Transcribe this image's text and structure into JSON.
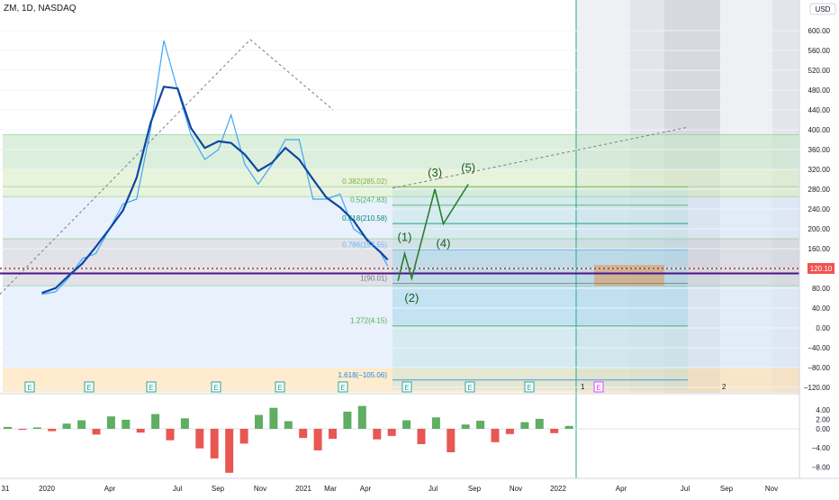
{
  "header": {
    "symbol_line": "ZM, 1D, NASDAQ"
  },
  "price_axis": {
    "currency": "USD",
    "ticks": [
      "600.00",
      "560.00",
      "520.00",
      "480.00",
      "440.00",
      "400.00",
      "360.00",
      "320.00",
      "280.00",
      "240.00",
      "200.00",
      "160.00",
      "120.00",
      "80.00",
      "40.00",
      "0.00",
      "−40.00",
      "−80.00",
      "−120.00"
    ],
    "last_price": "120.10",
    "last_price_color": "#ef5350"
  },
  "osc_axis": {
    "ticks": [
      "4.00",
      "2.00",
      "0.00",
      "−4.00",
      "−8.00"
    ]
  },
  "time_axis": {
    "ticks": [
      "31",
      "2020",
      "Apr",
      "Jul",
      "Sep",
      "Nov",
      "2021",
      "Mar",
      "Apr",
      "Jul",
      "Sep",
      "Nov",
      "2022",
      "Apr",
      "Jul",
      "Sep",
      "Nov"
    ]
  },
  "fib_labels": [
    {
      "text": "0.382(285.02)",
      "price": 285.02,
      "color": "#7cb342"
    },
    {
      "text": "0.5(247.83)",
      "price": 247.83,
      "color": "#4caf50"
    },
    {
      "text": "0.618(210.58)",
      "price": 210.58,
      "color": "#00897b"
    },
    {
      "text": "0.786(157.55)",
      "price": 157.55,
      "color": "#64b5f6"
    },
    {
      "text": "1(90.01)",
      "price": 90.01,
      "color": "#787b86"
    },
    {
      "text": "1.272(4.15)",
      "price": 4.15,
      "color": "#4caf50"
    },
    {
      "text": "1.618(−105.06)",
      "price": -105.06,
      "color": "#1e88e5"
    }
  ],
  "wave_labels": [
    "(1)",
    "(2)",
    "(3)",
    "(4)",
    "(5)"
  ],
  "earnings_marker": "E",
  "bottom_labels": [
    "1",
    "2"
  ],
  "colors": {
    "ma": "#0d47a1",
    "price_line": "#42a5f5",
    "wave": "#1b5e20",
    "hline_purple": "#4a148c",
    "hline_red": "#c62828"
  },
  "chart_data": {
    "type": "line",
    "x_axis": "date (daily)",
    "y_axis": "price (USD)",
    "ylim": [
      -130,
      630
    ],
    "series": [
      {
        "name": "",
        "points": [
          [
            "2019-12-31",
            68
          ],
          [
            "2020-01-31",
            73
          ],
          [
            "2020-02-28",
            100
          ],
          [
            "2020-03-31",
            140
          ],
          [
            "2020-04-30",
            150
          ],
          [
            "2020-05-31",
            200
          ],
          [
            "2020-06-30",
            250
          ],
          [
            "2020-07-31",
            260
          ],
          [
            "2020-08-31",
            400
          ],
          [
            "2020-09-30",
            580
          ],
          [
            "2020-10-31",
            480
          ],
          [
            "2020-11-30",
            390
          ],
          [
            "2020-12-31",
            340
          ],
          [
            "2021-01-31",
            360
          ],
          [
            "2021-02-28",
            430
          ],
          [
            "2021-03-31",
            330
          ],
          [
            "2021-04-30",
            290
          ],
          [
            "2021-05-31",
            330
          ],
          [
            "2021-06-30",
            380
          ],
          [
            "2021-07-31",
            380
          ],
          [
            "2021-08-31",
            260
          ],
          [
            "2021-09-30",
            260
          ],
          [
            "2021-10-31",
            270
          ],
          [
            "2021-11-30",
            200
          ],
          [
            "2021-12-31",
            180
          ],
          [
            "2022-01-31",
            150
          ],
          [
            "2022-02-15",
            125
          ]
        ]
      }
    ],
    "wave_projection": [
      {
        "label": "(2)",
        "date": "2022-03-10",
        "price": 95
      },
      {
        "label": "(1)",
        "date": "2022-03-25",
        "price": 150
      },
      {
        "label": "(2)",
        "date": "2022-04-10",
        "price": 100
      },
      {
        "label": "(3)",
        "date": "2022-06-01",
        "price": 280
      },
      {
        "label": "(4)",
        "date": "2022-06-20",
        "price": 210
      },
      {
        "label": "(5)",
        "date": "2022-08-15",
        "price": 290
      }
    ],
    "horizontal_levels": [
      120.1,
      110
    ],
    "oscillator": {
      "ylim": [
        -10,
        6
      ],
      "ticks": [
        4,
        2,
        0,
        -4,
        -8
      ]
    }
  }
}
